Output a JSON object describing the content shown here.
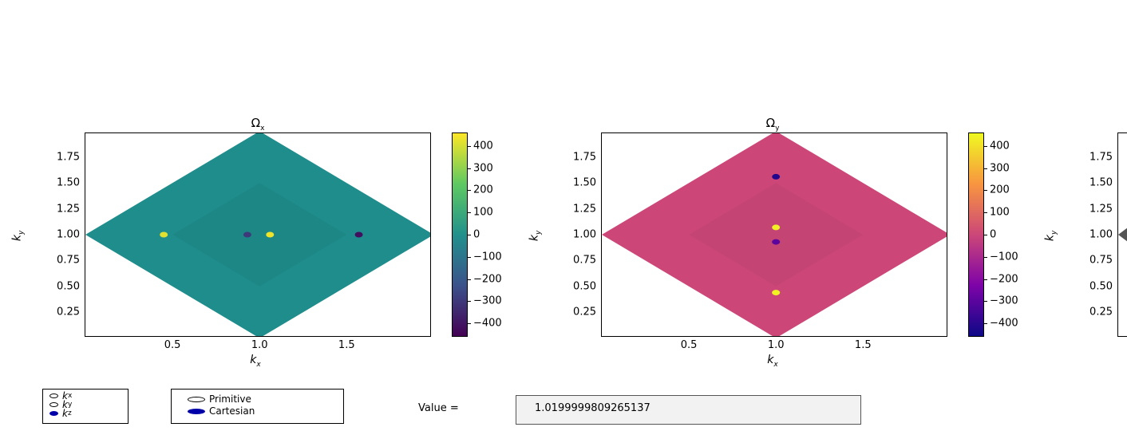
{
  "chart_data": [
    {
      "type": "heatmap",
      "title": "Ω",
      "title_sub": "x",
      "xlabel": "k",
      "xlabel_sub": "x",
      "ylabel": "k",
      "ylabel_sub": "y",
      "xlim": [
        0.0,
        1.98
      ],
      "ylim": [
        0.02,
        1.98
      ],
      "xticks": [
        "0.5",
        "1.0",
        "1.5"
      ],
      "yticks": [
        "0.25",
        "0.50",
        "0.75",
        "1.00",
        "1.25",
        "1.50",
        "1.75"
      ],
      "colormap": "viridis",
      "base_color": "#1f8d8c",
      "colorbar": {
        "min": -460,
        "max": 460,
        "ticks": [
          "400",
          "300",
          "200",
          "100",
          "0",
          "−100",
          "−200",
          "−300",
          "−400"
        ]
      },
      "hotspots": [
        {
          "x": 0.45,
          "y": 1.0,
          "value": 420
        },
        {
          "x": 1.06,
          "y": 1.0,
          "value": 440
        },
        {
          "x": 0.93,
          "y": 1.0,
          "value": -300
        },
        {
          "x": 1.57,
          "y": 1.0,
          "value": -420
        }
      ]
    },
    {
      "type": "heatmap",
      "title": "Ω",
      "title_sub": "y",
      "xlabel": "k",
      "xlabel_sub": "x",
      "ylabel": "k",
      "ylabel_sub": "y",
      "xlim": [
        0.0,
        1.98
      ],
      "ylim": [
        0.02,
        1.98
      ],
      "xticks": [
        "0.5",
        "1.0",
        "1.5"
      ],
      "yticks": [
        "0.25",
        "0.50",
        "0.75",
        "1.00",
        "1.25",
        "1.50",
        "1.75"
      ],
      "colormap": "plasma",
      "base_color": "#cc4778",
      "colorbar": {
        "min": -460,
        "max": 460,
        "ticks": [
          "400",
          "300",
          "200",
          "100",
          "0",
          "−100",
          "−200",
          "−300",
          "−400"
        ]
      },
      "hotspots": [
        {
          "x": 1.0,
          "y": 1.56,
          "value": -420
        },
        {
          "x": 1.0,
          "y": 1.07,
          "value": 440
        },
        {
          "x": 1.0,
          "y": 0.93,
          "value": -300
        },
        {
          "x": 1.0,
          "y": 0.44,
          "value": 450
        }
      ]
    }
  ],
  "third_panel": {
    "yticks": [
      "0.25",
      "0.50",
      "0.75",
      "1.00",
      "1.25",
      "1.50",
      "1.75"
    ],
    "ylabel": "k",
    "ylabel_sub": "y"
  },
  "controls": {
    "component_radio": [
      {
        "label": "k",
        "sub": "x",
        "selected": false
      },
      {
        "label": "k",
        "sub": "y",
        "selected": false
      },
      {
        "label": "k",
        "sub": "z",
        "selected": true
      }
    ],
    "basis_radio": [
      {
        "label": "Primitive",
        "selected": false
      },
      {
        "label": "Cartesian",
        "selected": true
      }
    ],
    "value_label": "Value =",
    "value_text": "1.0199999809265137"
  }
}
